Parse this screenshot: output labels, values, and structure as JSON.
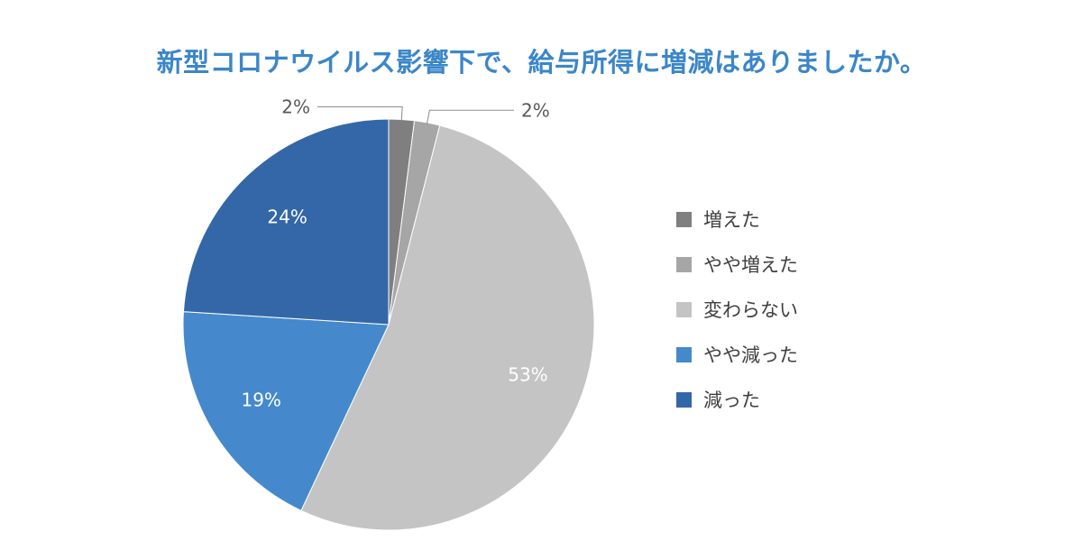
{
  "chart_data": {
    "type": "pie",
    "title": "新型コロナウイルス影響下で、給与所得に増減はありましたか。",
    "categories": [
      "増えた",
      "やや増えた",
      "変わらない",
      "やや減った",
      "減った"
    ],
    "values": [
      2,
      2,
      53,
      19,
      24
    ],
    "value_labels": [
      "2%",
      "2%",
      "53%",
      "19%",
      "24%"
    ],
    "colors": [
      "#7f7f7f",
      "#a6a6a6",
      "#c4c4c4",
      "#4589cc",
      "#3467a8"
    ],
    "legend_position": "right",
    "start_angle": "top, clockwise"
  }
}
